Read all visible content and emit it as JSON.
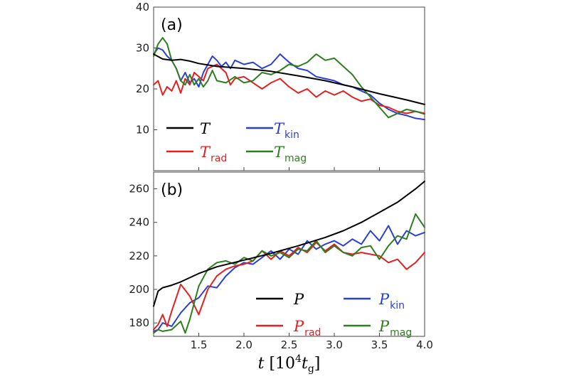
{
  "chart_data": [
    {
      "type": "line",
      "panel_label": "(a)",
      "xlim": [
        1.0,
        4.0
      ],
      "ylim": [
        0,
        40
      ],
      "yticks": [
        "10",
        "20",
        "30",
        "40"
      ],
      "grid": false,
      "legend_placement": "lower-left",
      "series": [
        {
          "name": "T",
          "subscript": "",
          "color": "#000000",
          "x": [
            1.0,
            1.1,
            1.2,
            1.3,
            1.4,
            1.5,
            1.7,
            2.0,
            2.3,
            2.6,
            2.9,
            3.2,
            3.5,
            3.8,
            4.0
          ],
          "y": [
            28.5,
            27.3,
            27.0,
            27.2,
            26.8,
            26.2,
            25.5,
            25.0,
            24.3,
            23.2,
            22.0,
            20.5,
            18.8,
            17.3,
            16.2
          ]
        },
        {
          "name": "T",
          "subscript": "kin",
          "color": "#2a3fd6",
          "x": [
            1.0,
            1.05,
            1.1,
            1.15,
            1.2,
            1.25,
            1.3,
            1.35,
            1.4,
            1.45,
            1.5,
            1.55,
            1.6,
            1.65,
            1.7,
            1.75,
            1.8,
            1.85,
            1.9,
            2.0,
            2.1,
            2.2,
            2.3,
            2.4,
            2.5,
            2.6,
            2.7,
            2.8,
            2.9,
            3.0,
            3.1,
            3.2,
            3.3,
            3.4,
            3.5,
            3.6,
            3.7,
            3.8,
            3.9,
            4.0
          ],
          "y": [
            28.5,
            30.0,
            29.5,
            28.0,
            27.0,
            25.0,
            22.0,
            24.0,
            21.5,
            22.5,
            20.5,
            24.0,
            26.0,
            28.0,
            27.0,
            25.5,
            26.5,
            25.0,
            27.0,
            26.0,
            26.5,
            25.0,
            26.0,
            28.5,
            26.5,
            25.0,
            24.5,
            23.0,
            22.5,
            22.0,
            21.0,
            20.5,
            19.5,
            18.5,
            16.5,
            15.0,
            14.0,
            13.5,
            12.8,
            12.5
          ]
        },
        {
          "name": "T",
          "subscript": "rad",
          "color": "#e32020",
          "x": [
            1.0,
            1.05,
            1.1,
            1.15,
            1.2,
            1.25,
            1.3,
            1.35,
            1.4,
            1.45,
            1.5,
            1.55,
            1.6,
            1.7,
            1.8,
            1.85,
            1.9,
            2.0,
            2.1,
            2.2,
            2.3,
            2.4,
            2.5,
            2.6,
            2.7,
            2.8,
            2.9,
            3.0,
            3.1,
            3.2,
            3.3,
            3.4,
            3.5,
            3.6,
            3.7,
            3.8,
            3.9,
            4.0
          ],
          "y": [
            21.0,
            22.0,
            18.5,
            20.5,
            19.5,
            22.0,
            19.0,
            22.5,
            21.0,
            24.0,
            23.0,
            22.0,
            25.0,
            26.0,
            24.0,
            21.0,
            22.5,
            23.0,
            21.5,
            20.0,
            21.5,
            22.5,
            20.5,
            19.0,
            20.0,
            18.0,
            19.5,
            18.5,
            19.5,
            18.0,
            17.0,
            17.5,
            16.0,
            15.5,
            14.5,
            14.0,
            14.5,
            14.0
          ]
        },
        {
          "name": "T",
          "subscript": "mag",
          "color": "#2e7d1e",
          "x": [
            1.0,
            1.05,
            1.1,
            1.15,
            1.2,
            1.25,
            1.3,
            1.35,
            1.4,
            1.45,
            1.5,
            1.55,
            1.6,
            1.65,
            1.7,
            1.8,
            1.9,
            2.0,
            2.1,
            2.2,
            2.3,
            2.4,
            2.5,
            2.6,
            2.7,
            2.8,
            2.9,
            3.0,
            3.1,
            3.2,
            3.3,
            3.4,
            3.5,
            3.6,
            3.7,
            3.8,
            3.9,
            4.0
          ],
          "y": [
            28.0,
            31.0,
            32.5,
            31.0,
            27.0,
            25.0,
            22.0,
            21.0,
            23.5,
            21.0,
            22.5,
            20.5,
            22.0,
            24.5,
            22.0,
            21.5,
            23.0,
            21.5,
            22.0,
            24.0,
            23.5,
            24.5,
            26.0,
            25.5,
            26.5,
            28.5,
            27.0,
            27.5,
            25.5,
            23.5,
            20.5,
            18.0,
            15.5,
            13.0,
            14.0,
            15.0,
            14.5,
            13.8
          ]
        }
      ]
    },
    {
      "type": "line",
      "panel_label": "(b)",
      "xlim": [
        1.0,
        4.0
      ],
      "ylim": [
        172,
        270
      ],
      "yticks": [
        "180",
        "200",
        "220",
        "240",
        "260"
      ],
      "xticks": [
        "1.5",
        "2.0",
        "2.5",
        "3.0",
        "3.5",
        "4.0"
      ],
      "xlabel": "t [10^4 t_g]",
      "grid": false,
      "legend_placement": "lower-right",
      "series": [
        {
          "name": "P",
          "subscript": "",
          "color": "#000000",
          "x": [
            1.0,
            1.05,
            1.1,
            1.2,
            1.3,
            1.4,
            1.5,
            1.7,
            2.0,
            2.3,
            2.6,
            2.9,
            3.1,
            3.3,
            3.5,
            3.7,
            3.9,
            4.0
          ],
          "y": [
            190.0,
            199.0,
            201.0,
            202.5,
            204.5,
            207.0,
            209.5,
            213.5,
            217.5,
            221.5,
            226.0,
            231.0,
            235.0,
            240.0,
            246.0,
            252.0,
            260.0,
            264.5
          ]
        },
        {
          "name": "P",
          "subscript": "kin",
          "color": "#2a3fd6",
          "x": [
            1.0,
            1.05,
            1.1,
            1.2,
            1.3,
            1.4,
            1.5,
            1.6,
            1.7,
            1.8,
            1.9,
            2.0,
            2.1,
            2.2,
            2.3,
            2.4,
            2.5,
            2.6,
            2.7,
            2.8,
            2.9,
            3.0,
            3.1,
            3.2,
            3.3,
            3.4,
            3.5,
            3.6,
            3.7,
            3.8,
            3.9,
            4.0
          ],
          "y": [
            175.0,
            176.0,
            180.0,
            178.0,
            186.0,
            192.0,
            195.0,
            202.0,
            201.0,
            208.0,
            213.0,
            216.0,
            215.0,
            219.0,
            223.0,
            218.0,
            224.0,
            221.0,
            229.0,
            224.0,
            227.0,
            229.0,
            226.0,
            230.0,
            227.0,
            235.0,
            229.0,
            238.0,
            227.0,
            235.0,
            232.0,
            234.0
          ]
        },
        {
          "name": "P",
          "subscript": "rad",
          "color": "#e32020",
          "x": [
            1.0,
            1.05,
            1.1,
            1.15,
            1.2,
            1.3,
            1.4,
            1.5,
            1.6,
            1.7,
            1.8,
            1.9,
            2.0,
            2.1,
            2.2,
            2.3,
            2.4,
            2.5,
            2.6,
            2.7,
            2.8,
            2.9,
            3.0,
            3.1,
            3.2,
            3.3,
            3.4,
            3.5,
            3.6,
            3.7,
            3.8,
            3.9,
            4.0
          ],
          "y": [
            176.0,
            179.0,
            185.0,
            178.0,
            187.0,
            203.0,
            196.0,
            185.0,
            200.0,
            208.0,
            212.0,
            214.0,
            215.0,
            217.0,
            223.0,
            218.0,
            223.0,
            220.0,
            225.0,
            222.0,
            228.0,
            223.0,
            227.0,
            222.0,
            221.0,
            222.0,
            221.0,
            220.0,
            216.0,
            218.0,
            212.0,
            216.0,
            222.0
          ]
        },
        {
          "name": "P",
          "subscript": "mag",
          "color": "#2e7d1e",
          "x": [
            1.0,
            1.05,
            1.1,
            1.2,
            1.3,
            1.35,
            1.4,
            1.5,
            1.6,
            1.7,
            1.8,
            1.9,
            2.0,
            2.1,
            2.2,
            2.3,
            2.4,
            2.5,
            2.6,
            2.7,
            2.8,
            2.9,
            3.0,
            3.1,
            3.2,
            3.3,
            3.4,
            3.5,
            3.6,
            3.7,
            3.8,
            3.9,
            4.0
          ],
          "y": [
            174.0,
            176.0,
            175.0,
            176.0,
            181.0,
            174.0,
            182.0,
            202.0,
            212.0,
            216.0,
            217.0,
            215.0,
            219.0,
            217.0,
            223.0,
            220.0,
            222.0,
            219.0,
            224.0,
            223.0,
            229.0,
            222.0,
            226.0,
            222.0,
            220.0,
            225.0,
            226.0,
            218.0,
            226.0,
            232.0,
            230.0,
            245.0,
            237.0
          ]
        }
      ]
    }
  ]
}
